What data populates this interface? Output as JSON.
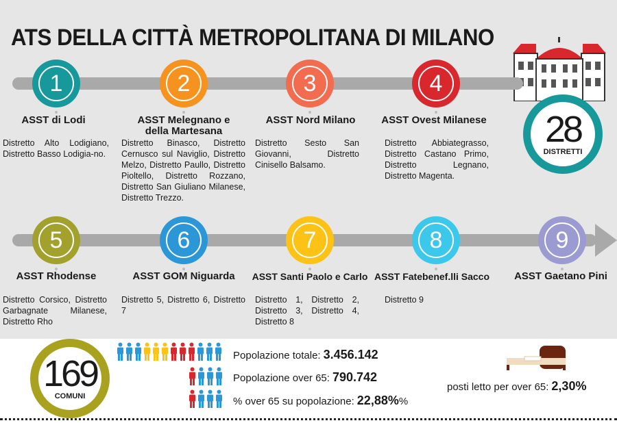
{
  "title": "ATS DELLA CITTÀ METROPOLITANA DI MILANO",
  "distretti": {
    "number": "28",
    "label": "DISTRETTI"
  },
  "asst": [
    {
      "number": "1",
      "name": "ASST di Lodi",
      "color": "#17989a",
      "districts": "Distretto Alto Lodigiano, Distretto Basso Lodigia-no."
    },
    {
      "number": "2",
      "name": "ASST Melegnano e della Martesana",
      "color": "#f5931e",
      "districts": "Distretto Binasco, Distretto Cernusco sul Naviglio, Distretto Melzo, Distretto Paullo, Distretto Pioltello, Distretto Rozzano, Distretto San Giuliano Milanese, Distretto Trezzo."
    },
    {
      "number": "3",
      "name": "ASST Nord Milano",
      "color": "#f26c4f",
      "districts": "Distretto Sesto San Giovanni, Distretto Cinisello Balsamo."
    },
    {
      "number": "4",
      "name": "ASST Ovest Milanese",
      "color": "#d9272e",
      "districts": "Distretto Abbiategrasso, Distretto Castano Primo, Distretto Legnano, Distretto Magenta."
    },
    {
      "number": "5",
      "name": "ASST Rhodense",
      "color": "#a3a12d",
      "districts": "Distretto Corsico, Distretto Garbagnate Milanese, Distretto Rho"
    },
    {
      "number": "6",
      "name": "ASST GOM Niguarda",
      "color": "#2c97d6",
      "districts": "Distretto 5, Distretto 6, Distretto 7"
    },
    {
      "number": "7",
      "name": "ASST Santi Paolo e Carlo",
      "color": "#fcc216",
      "districts": "Distretto 1, Distretto 2, Distretto 3, Distretto 4, Distretto 8"
    },
    {
      "number": "8",
      "name": "ASST Fatebenef.lli Sacco",
      "color": "#3cc8ea",
      "districts": "Distretto 9"
    },
    {
      "number": "9",
      "name": "ASST Gaetano Pini",
      "color": "#9c9bd1",
      "districts": ""
    }
  ],
  "comuni": {
    "number": "169",
    "label": "COMUNI"
  },
  "stats": [
    {
      "label": "Popolazione totale:",
      "value": "3.456.142",
      "suffix": ""
    },
    {
      "label": "Popolazione over 65:",
      "value": "790.742",
      "suffix": ""
    },
    {
      "label": "% over 65 su popolazione:",
      "value": "22,88%",
      "suffix": "%"
    }
  ],
  "posti": {
    "label": "posti letto per over 65:",
    "value": "2,30%"
  },
  "colors": {
    "teal": "#17989a",
    "olive": "#a8a21f",
    "red": "#d9272e",
    "yellow": "#fcc216",
    "blue": "#2c97d6",
    "gray": "#a9a9a9"
  }
}
